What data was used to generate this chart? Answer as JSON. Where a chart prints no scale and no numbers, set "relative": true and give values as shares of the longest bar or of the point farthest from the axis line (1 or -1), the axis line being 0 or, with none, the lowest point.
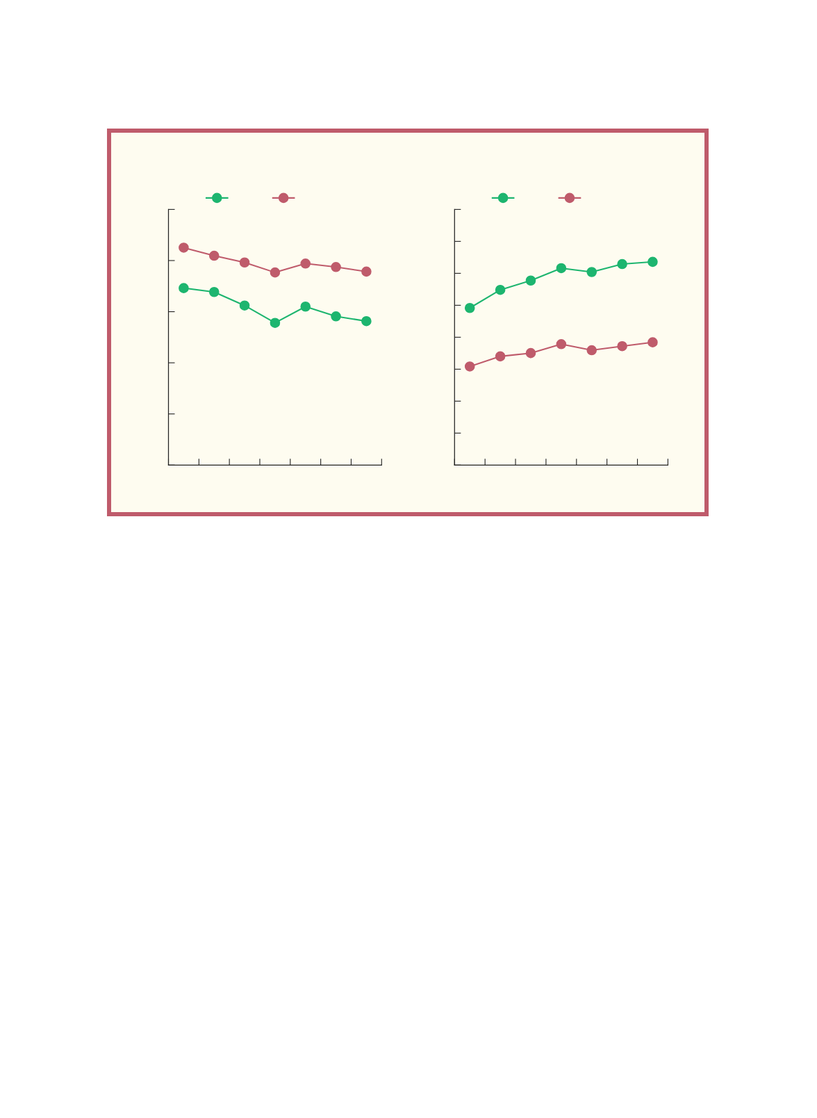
{
  "chart_data": [
    {
      "type": "line",
      "relative": true,
      "marker": "circle",
      "line_style": "solid",
      "categories": [
        null,
        null,
        null,
        null,
        null,
        null,
        null
      ],
      "series": [
        {
          "color": "#1db56f",
          "values": [
            0.814,
            0.796,
            0.734,
            0.654,
            0.729,
            0.684,
            0.662
          ]
        },
        {
          "color": "#bf5b6b",
          "values": [
            1,
            0.963,
            0.932,
            0.886,
            0.927,
            0.911,
            0.89
          ]
        }
      ]
    },
    {
      "type": "line",
      "relative": true,
      "marker": "circle",
      "line_style": "solid",
      "categories": [
        null,
        null,
        null,
        null,
        null,
        null,
        null
      ],
      "series": [
        {
          "color": "#1db56f",
          "values": [
            0.773,
            0.862,
            0.908,
            0.969,
            0.95,
            0.989,
            1
          ]
        },
        {
          "color": "#bf5b6b",
          "values": [
            0.485,
            0.535,
            0.551,
            0.595,
            0.565,
            0.585,
            0.604
          ]
        }
      ]
    }
  ]
}
